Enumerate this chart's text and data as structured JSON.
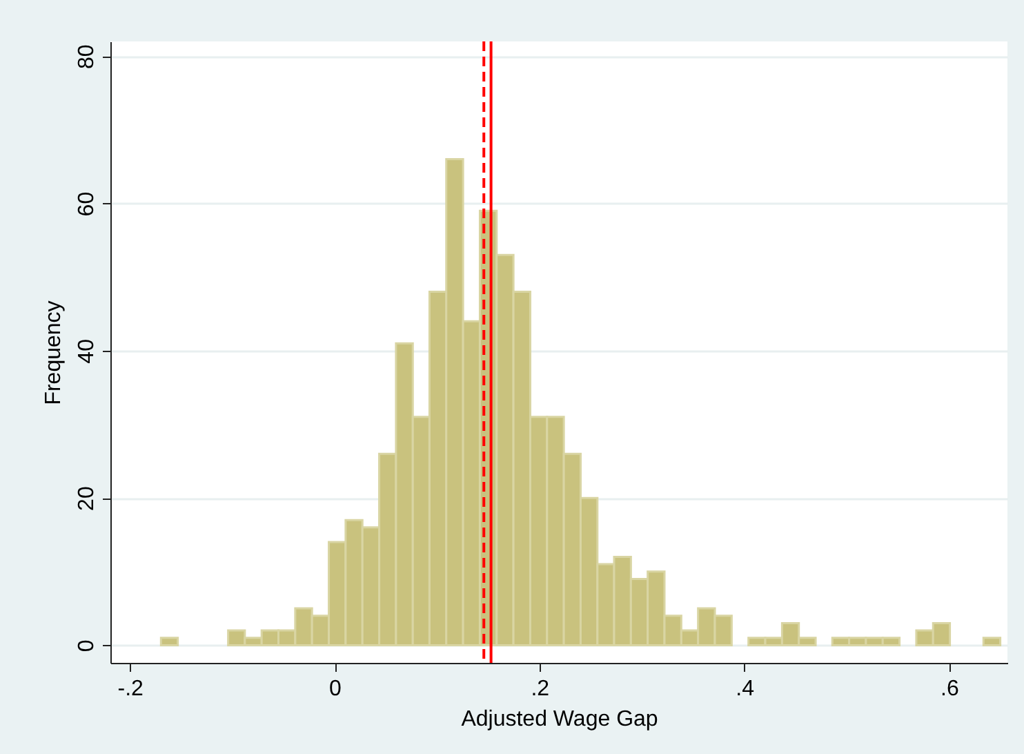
{
  "chart_data": {
    "type": "histogram",
    "xlabel": "Adjusted Wage Gap",
    "ylabel": "Frequency",
    "bins": [
      -0.1696,
      -0.1532,
      -0.1368,
      -0.1204,
      -0.104,
      -0.0877,
      -0.0713,
      -0.0549,
      -0.0385,
      -0.0221,
      -0.0057,
      0.0107,
      0.0271,
      0.0435,
      0.0599,
      0.0763,
      0.0926,
      0.109,
      0.1254,
      0.1418,
      0.1582,
      0.1746,
      0.191,
      0.2074,
      0.2238,
      0.2402,
      0.2566,
      0.2729,
      0.2893,
      0.3057,
      0.3221,
      0.3385,
      0.3549,
      0.3713,
      0.3877,
      0.4041,
      0.4205,
      0.4369,
      0.4533,
      0.4697,
      0.486,
      0.5024,
      0.5188,
      0.5352,
      0.5516,
      0.568,
      0.5844,
      0.6008,
      0.6172,
      0.6336,
      0.65
    ],
    "values": [
      1,
      0,
      0,
      0,
      2,
      1,
      2,
      2,
      5,
      4,
      14,
      17,
      16,
      26,
      41,
      31,
      48,
      66,
      44,
      59,
      53,
      48,
      31,
      31,
      26,
      20,
      11,
      12,
      9,
      10,
      4,
      2,
      5,
      4,
      0,
      1,
      1,
      3,
      1,
      0,
      1,
      1,
      1,
      1,
      0,
      2,
      3,
      0,
      0,
      1
    ],
    "color": "#c9c27e",
    "xlim": [
      -0.219,
      0.657
    ],
    "xticks": [
      {
        "value": -0.2,
        "label": "-.2"
      },
      0,
      {
        "value": 0.2,
        "label": ".2"
      },
      {
        "value": 0.4,
        "label": ".4"
      },
      {
        "value": 0.6,
        "label": ".6"
      }
    ],
    "ylim": [
      -2.4,
      82
    ],
    "yticks": [
      0,
      20,
      40,
      60,
      80
    ],
    "grid": "y",
    "ref_lines": [
      {
        "axis": "x",
        "value": 0.1457,
        "color": "#ff0000",
        "line_style": "dashed"
      },
      {
        "axis": "x",
        "value": 0.1527,
        "color": "#ff0000",
        "line_style": "solid"
      }
    ]
  }
}
